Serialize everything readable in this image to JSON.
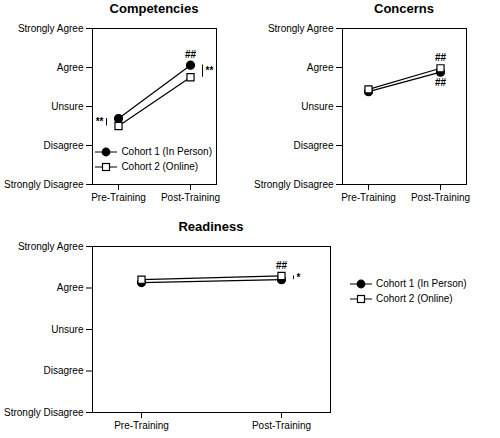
{
  "chart_data": [
    {
      "type": "line",
      "title": "Competencies",
      "categories": [
        "Pre-Training",
        "Post-Training"
      ],
      "ylim": [
        1,
        5
      ],
      "yticks": [
        {
          "value": 1,
          "label": "Strongly Disagree"
        },
        {
          "value": 2,
          "label": "Disagree"
        },
        {
          "value": 3,
          "label": "Unsure"
        },
        {
          "value": 4,
          "label": "Agree"
        },
        {
          "value": 5,
          "label": "Strongly Agree"
        }
      ],
      "legend": "bottom-right",
      "series": [
        {
          "name": "Cohort 1 (In Person)",
          "color": "#000000",
          "marker": "circle",
          "values": [
            2.69,
            4.06
          ]
        },
        {
          "name": "Cohort 2 (Online)",
          "color": "#000000",
          "marker": "square-open",
          "values": [
            2.5,
            3.75
          ]
        }
      ],
      "annotations": [
        {
          "text": "##",
          "x": "Post-Training",
          "series": "Cohort 1 (In Person)",
          "position": "above"
        },
        {
          "text": "**",
          "x": "Pre-Training",
          "between": [
            "Cohort 1 (In Person)",
            "Cohort 2 (Online)"
          ],
          "position": "left"
        },
        {
          "text": "**",
          "x": "Post-Training",
          "between": [
            "Cohort 1 (In Person)",
            "Cohort 2 (Online)"
          ],
          "position": "right"
        }
      ]
    },
    {
      "type": "line",
      "title": "Concerns",
      "categories": [
        "Pre-Training",
        "Post-Training"
      ],
      "ylim": [
        1,
        5
      ],
      "yticks": [
        {
          "value": 1,
          "label": "Strongly Disagree"
        },
        {
          "value": 2,
          "label": "Disagree"
        },
        {
          "value": 3,
          "label": "Unsure"
        },
        {
          "value": 4,
          "label": "Agree"
        },
        {
          "value": 5,
          "label": "Strongly Agree"
        }
      ],
      "series": [
        {
          "name": "Cohort 1 (In Person)",
          "color": "#000000",
          "marker": "circle",
          "values": [
            3.38,
            3.88
          ]
        },
        {
          "name": "Cohort 2 (Online)",
          "color": "#000000",
          "marker": "square-open",
          "values": [
            3.44,
            3.98
          ]
        }
      ],
      "annotations": [
        {
          "text": "##",
          "x": "Post-Training",
          "series": "Cohort 2 (Online)",
          "position": "above"
        },
        {
          "text": "##",
          "x": "Post-Training",
          "series": "Cohort 1 (In Person)",
          "position": "below"
        }
      ]
    },
    {
      "type": "line",
      "title": "Readiness",
      "categories": [
        "Pre-Training",
        "Post-Training"
      ],
      "ylim": [
        1,
        5
      ],
      "yticks": [
        {
          "value": 1,
          "label": "Strongly Disagree"
        },
        {
          "value": 2,
          "label": "Disagree"
        },
        {
          "value": 3,
          "label": "Unsure"
        },
        {
          "value": 4,
          "label": "Agree"
        },
        {
          "value": 5,
          "label": "Strongly Agree"
        }
      ],
      "legend": "right",
      "series": [
        {
          "name": "Cohort 1 (In Person)",
          "color": "#000000",
          "marker": "circle",
          "values": [
            4.13,
            4.2
          ],
          "errors": [
            0.06,
            0.04
          ]
        },
        {
          "name": "Cohort 2 (Online)",
          "color": "#000000",
          "marker": "square-open",
          "values": [
            4.2,
            4.29
          ],
          "errors": [
            0.02,
            0.02
          ]
        }
      ],
      "annotations": [
        {
          "text": "##",
          "x": "Post-Training",
          "series": "Cohort 2 (Online)",
          "position": "above"
        },
        {
          "text": "*",
          "x": "Post-Training",
          "between": [
            "Cohort 1 (In Person)",
            "Cohort 2 (Online)"
          ],
          "position": "right"
        }
      ]
    }
  ]
}
